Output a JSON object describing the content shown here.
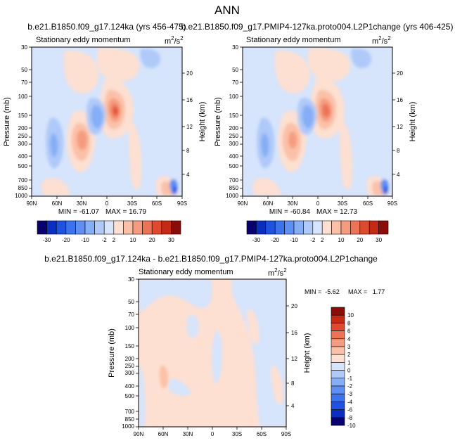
{
  "figure_title": "ANN",
  "colors": {
    "palette": [
      "#08006e",
      "#0a2fc0",
      "#1f52e0",
      "#3c73ec",
      "#5f8ff2",
      "#86aef6",
      "#afc9f9",
      "#d6e4fc",
      "#fde0d2",
      "#fbc1a8",
      "#f59c80",
      "#ec7356",
      "#df4a2e",
      "#c52a17",
      "#8c0c08"
    ],
    "diff_palette": [
      "#08006e",
      "#0a2fc0",
      "#1f52e0",
      "#3c73ec",
      "#5f8ff2",
      "#86aef6",
      "#afc9f9",
      "#d6e4fc",
      "#fde0d2",
      "#fbc1a8",
      "#f59c80",
      "#ec7356",
      "#df4a2e",
      "#c52a17",
      "#8c0c08"
    ]
  },
  "chart_data": [
    {
      "type": "heatmap",
      "panel_title": "b.e21.B1850.f09_g17.124ka (yrs 456-475)",
      "subtitle": "Stationary eddy momentum",
      "units_base": "m",
      "units_sup1": "2",
      "units_mid": "/s",
      "units_sup2": "2",
      "ylabel_left": "Pressure (mb)",
      "ylabel_right": "Height (km)",
      "x_ticks": [
        "90N",
        "60N",
        "30N",
        "0",
        "30S",
        "60S",
        "90S"
      ],
      "pressure_ticks": [
        "30",
        "50",
        "70",
        "100",
        "150",
        "200",
        "250",
        "300",
        "400",
        "500",
        "700",
        "850",
        "1000"
      ],
      "height_ticks": [
        "20",
        "16",
        "12",
        "8",
        "4"
      ],
      "min_label": "MIN = -61.07",
      "max_label": "MAX = 16.79",
      "min": -61.07,
      "max": 16.79,
      "colorbar_labels": [
        "-30",
        "-20",
        "-10",
        "-2",
        "2",
        "10",
        "20",
        "30"
      ]
    },
    {
      "type": "heatmap",
      "panel_title": "b.e21.B1850.f09_g17.PMIP4-127ka.proto004.L2P1change (yrs 406-425)",
      "subtitle": "Stationary eddy momentum",
      "units_base": "m",
      "units_sup1": "2",
      "units_mid": "/s",
      "units_sup2": "2",
      "ylabel_left": "Pressure (mb)",
      "ylabel_right": "Height (km)",
      "x_ticks": [
        "90N",
        "60N",
        "30N",
        "0",
        "30S",
        "60S",
        "90S"
      ],
      "pressure_ticks": [
        "30",
        "50",
        "70",
        "100",
        "150",
        "200",
        "250",
        "300",
        "400",
        "500",
        "700",
        "850",
        "1000"
      ],
      "height_ticks": [
        "20",
        "16",
        "12",
        "8",
        "4"
      ],
      "min_label": "MIN = -60.84",
      "max_label": "MAX = 12.73",
      "min": -60.84,
      "max": 12.73,
      "colorbar_labels": [
        "-30",
        "-20",
        "-10",
        "-2",
        "2",
        "10",
        "20",
        "30"
      ]
    },
    {
      "type": "heatmap",
      "panel_title": "b.e21.B1850.f09_g17.124ka - b.e21.B1850.f09_g17.PMIP4-127ka.proto004.L2P1change",
      "subtitle": "Stationary eddy momentum",
      "units_base": "m",
      "units_sup1": "2",
      "units_mid": "/s",
      "units_sup2": "2",
      "ylabel_left": "Pressure (mb)",
      "ylabel_right": "Height (km)",
      "x_ticks": [
        "90N",
        "60N",
        "30N",
        "0",
        "30S",
        "60S",
        "90S"
      ],
      "pressure_ticks": [
        "30",
        "50",
        "70",
        "100",
        "150",
        "200",
        "250",
        "300",
        "400",
        "500",
        "700",
        "850",
        "1000"
      ],
      "height_ticks": [
        "20",
        "16",
        "12",
        "8",
        "4"
      ],
      "min_label": "MIN =  -5.62",
      "max_label": "MAX =   1.77",
      "min": -5.62,
      "max": 1.77,
      "colorbar_labels": [
        "10",
        "8",
        "6",
        "4",
        "3",
        "2",
        "1",
        "0",
        "-1",
        "-2",
        "-3",
        "-4",
        "-6",
        "-8",
        "-10"
      ]
    }
  ]
}
